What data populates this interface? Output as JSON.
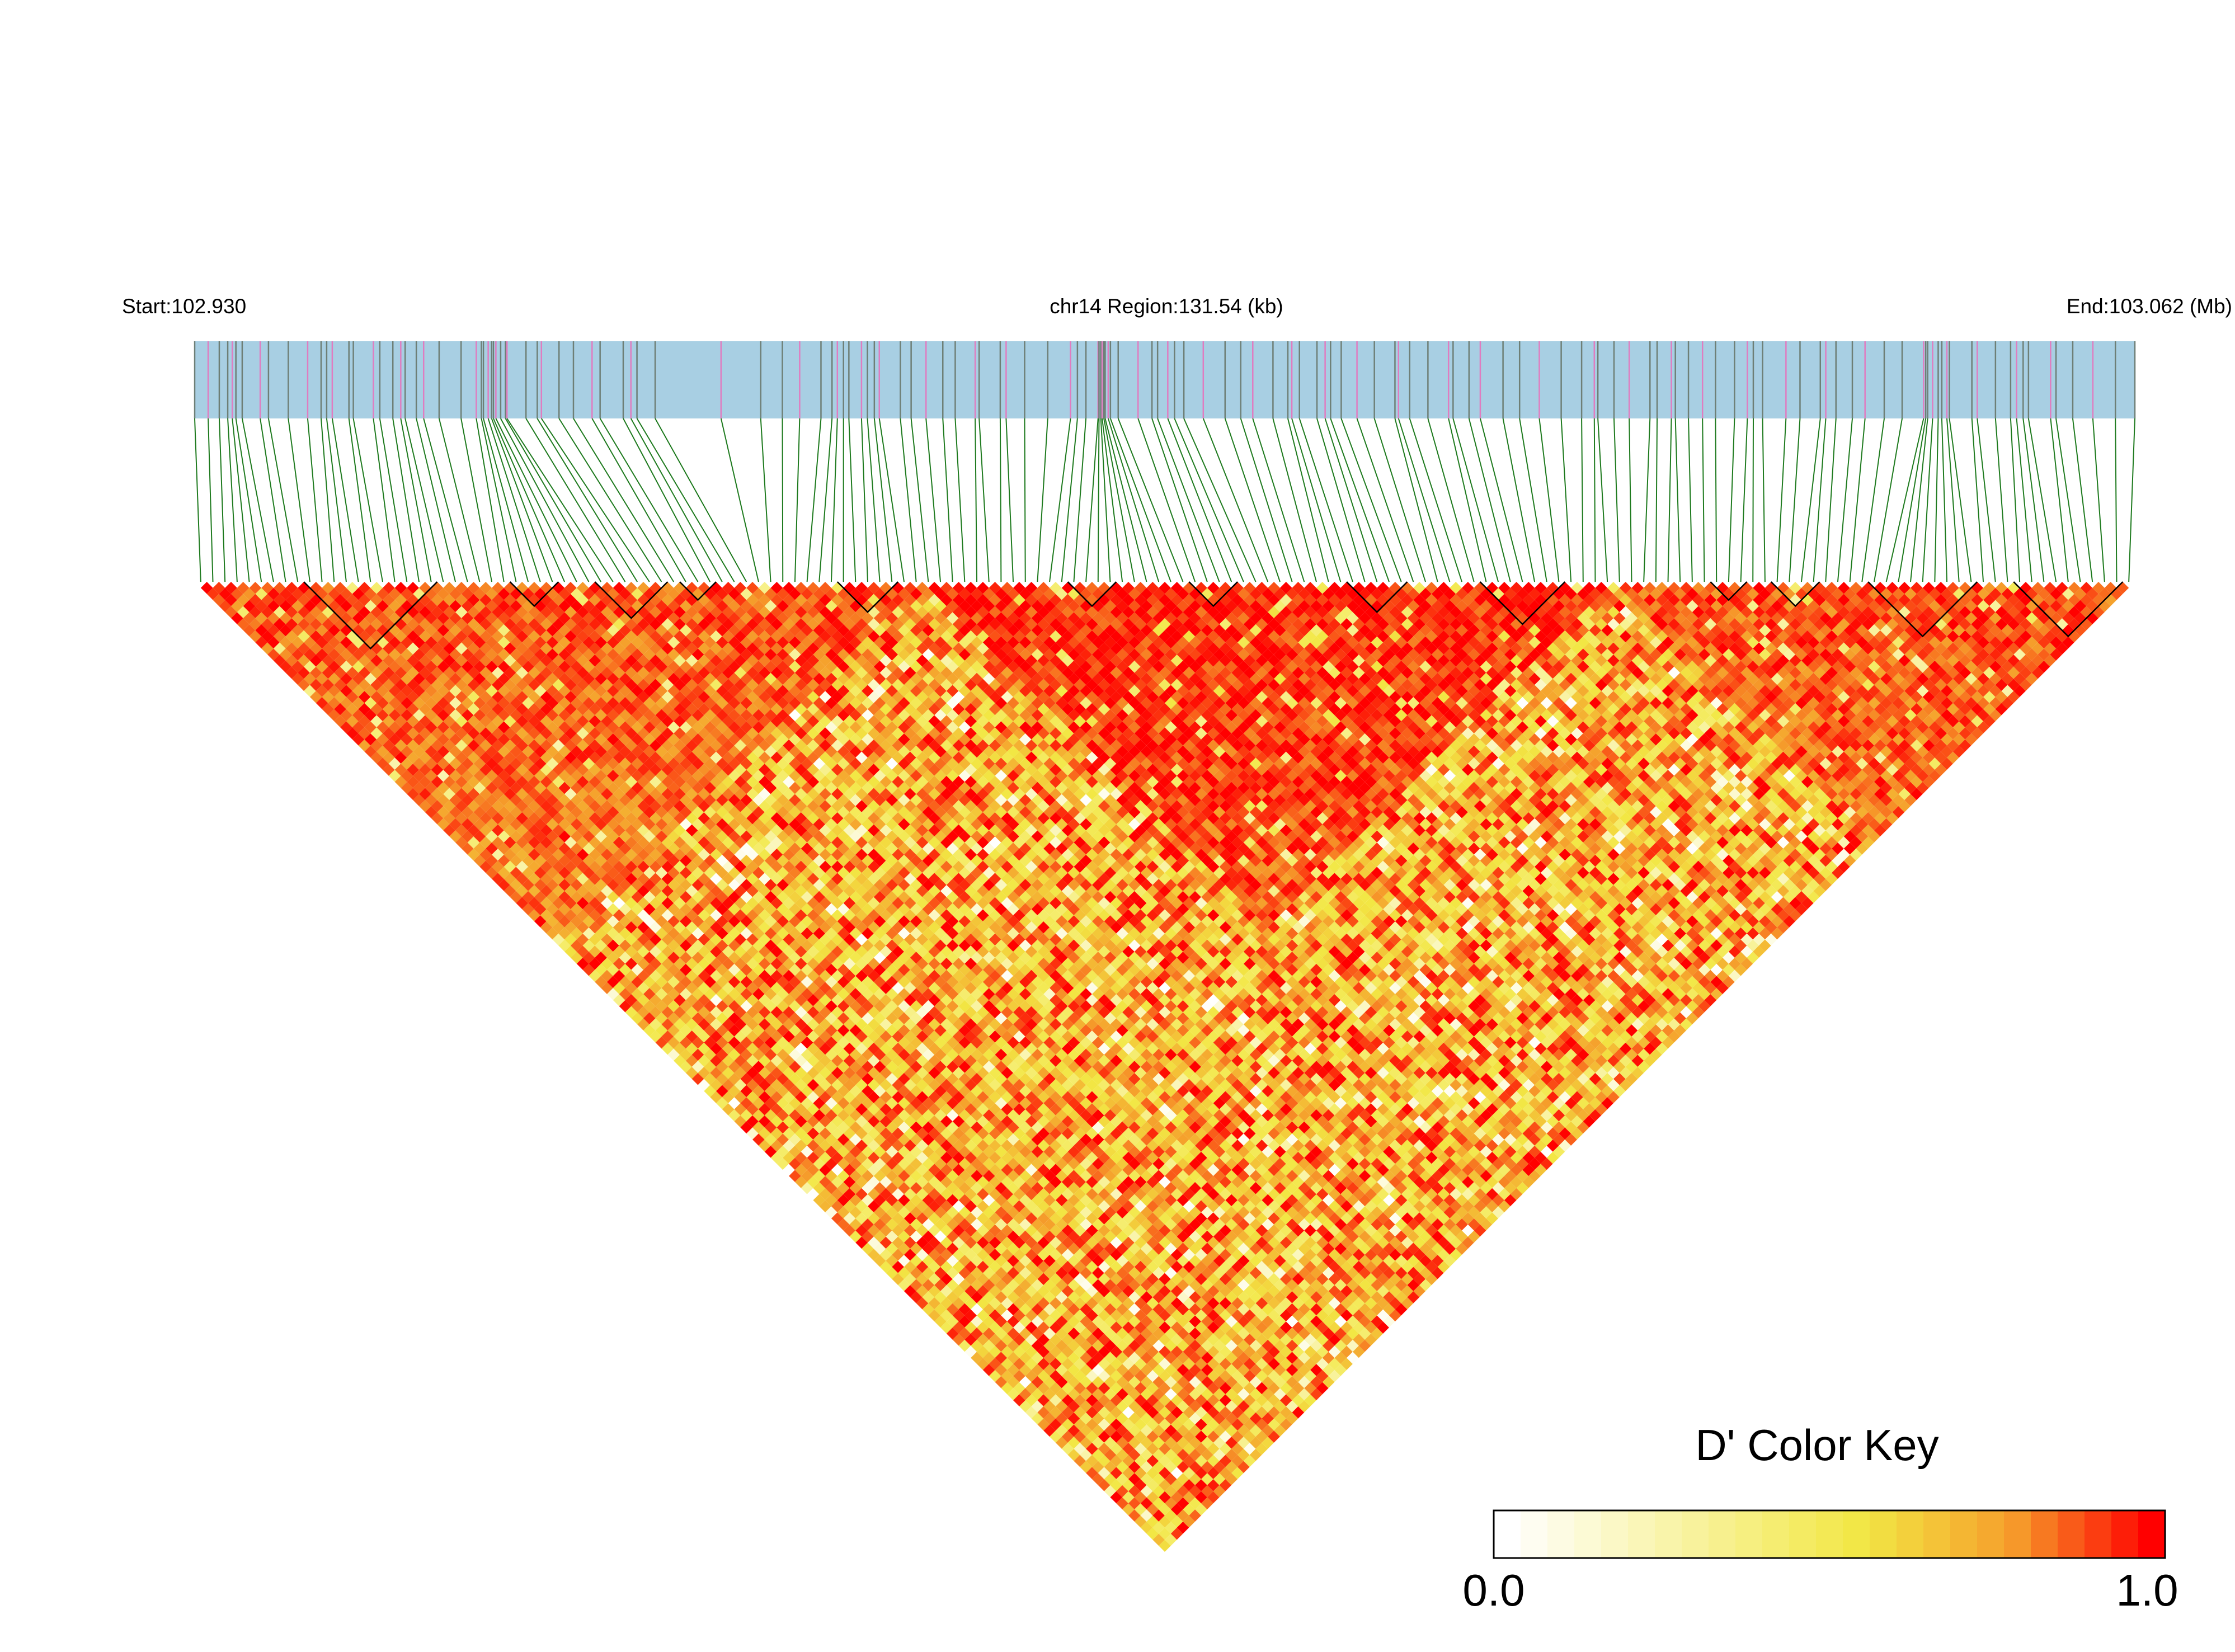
{
  "chart_data": {
    "type": "heatmap",
    "subtype": "linkage-disequilibrium-triangle",
    "chromosome": "chr14",
    "start_label": "Start:102.930",
    "region_label": "chr14 Region:131.54 (kb)",
    "end_label": "End:103.062 (Mb)",
    "region_start_mb": 102.93,
    "region_end_mb": 103.062,
    "region_size_kb": 131.54,
    "snp_count": 160,
    "track_colors": {
      "background": "#a8cfe3",
      "snp_tick_a": "#6e7f76",
      "snp_tick_b": "#e07cc0",
      "connector": "#1e7a1e"
    },
    "heatmap_scale": {
      "metric": "D'",
      "min": 0.0,
      "max": 1.0,
      "colors": [
        "#ffffff",
        "#f2e744",
        "#f5a02c",
        "#ff0000"
      ]
    },
    "haplotype_blocks_snp_ranges": [
      [
        9,
        19
      ],
      [
        26,
        29
      ],
      [
        33,
        38
      ],
      [
        40,
        42
      ],
      [
        53,
        57
      ],
      [
        72,
        75
      ],
      [
        82,
        85
      ],
      [
        95,
        99
      ],
      [
        106,
        112
      ],
      [
        125,
        127
      ],
      [
        130,
        133
      ],
      [
        138,
        146
      ],
      [
        150,
        158
      ]
    ],
    "color_key": {
      "title": "D' Color Key",
      "min_label": "0.0",
      "max_label": "1.0",
      "steps": 25
    },
    "grid": false,
    "legend_position": "bottom-right"
  }
}
